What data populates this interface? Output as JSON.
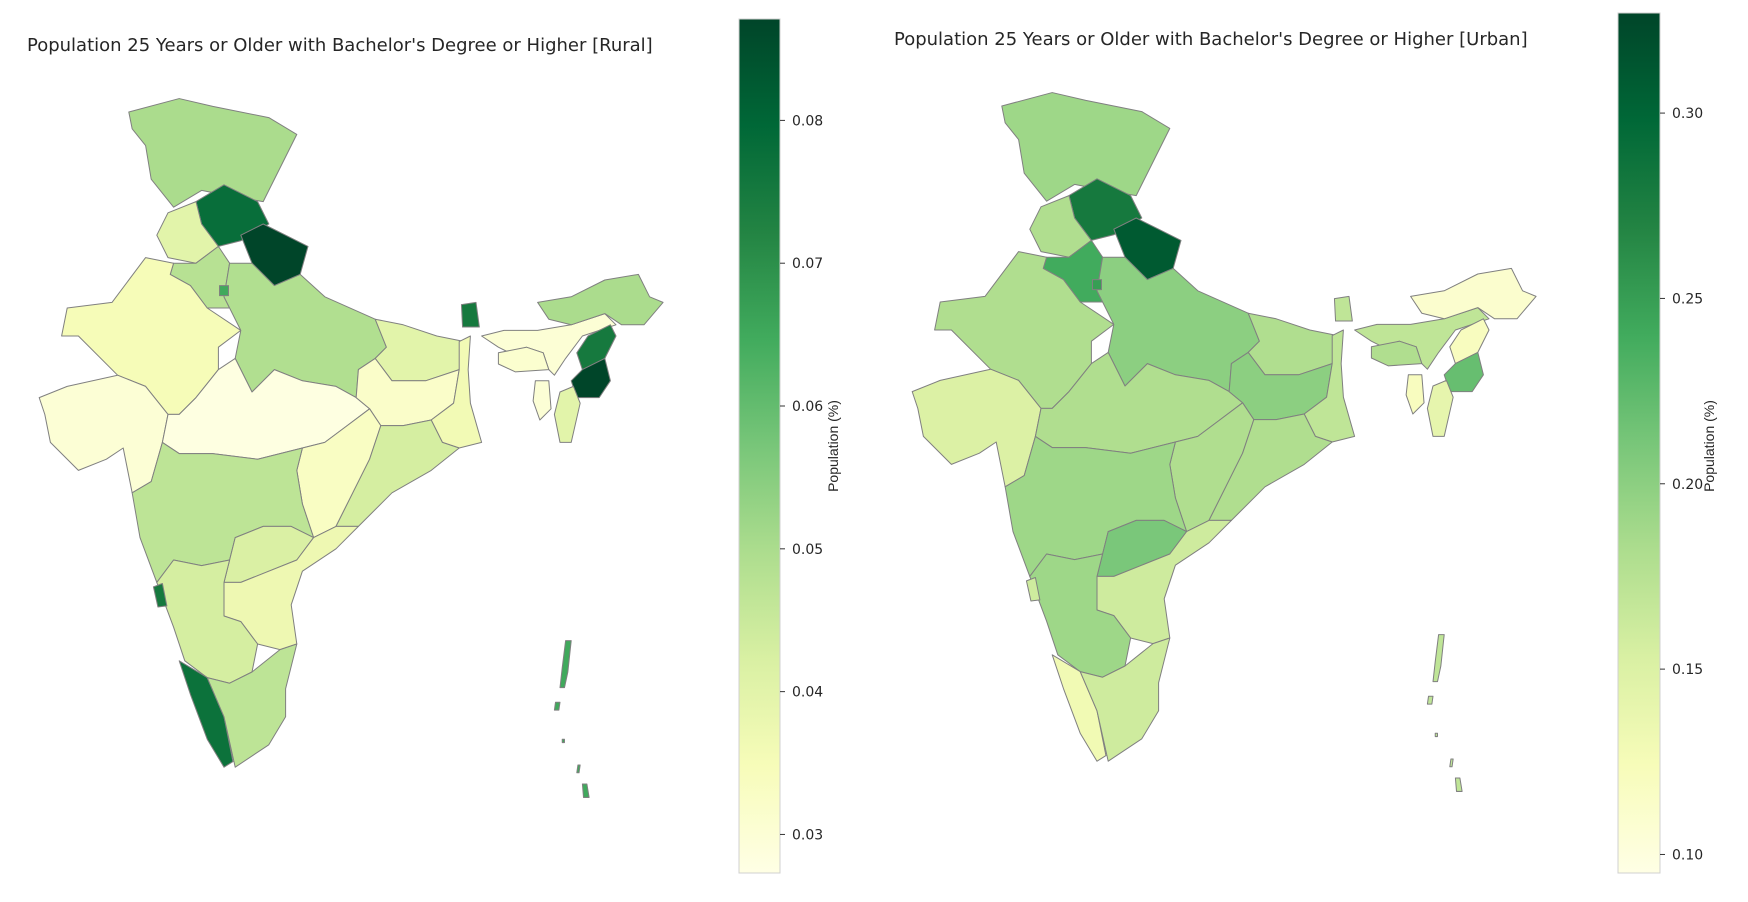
{
  "chart_data": [
    {
      "type": "choropleth",
      "title": "Population 25 Years or Older with Bachelor's Degree or Higher [Rural]",
      "colorbar_label": "Population (%)",
      "colormap": "YlGn",
      "vlim": [
        0.0273,
        0.0871
      ],
      "ticks": [
        0.03,
        0.04,
        0.05,
        0.06,
        0.07,
        0.08
      ],
      "tick_labels": [
        "0.03",
        "0.04",
        "0.05",
        "0.06",
        "0.07",
        "0.08"
      ],
      "values": {
        "Jammu & Kashmir": 0.05,
        "Himachal Pradesh": 0.078,
        "Uttarakhand": 0.087,
        "Punjab": 0.04,
        "Haryana": 0.048,
        "Delhi": 0.065,
        "Rajasthan": 0.035,
        "Uttar Pradesh": 0.049,
        "Bihar": 0.04,
        "Gujarat": 0.03,
        "Madhya Pradesh": 0.028,
        "Jharkhand": 0.032,
        "West Bengal": 0.036,
        "Chhattisgarh": 0.033,
        "Odisha": 0.043,
        "Maharashtra": 0.047,
        "Telangana": 0.042,
        "Andhra Pradesh": 0.037,
        "Karnataka": 0.043,
        "Goa": 0.075,
        "Kerala": 0.077,
        "Tamil Nadu": 0.047,
        "Sikkim": 0.075,
        "Assam": 0.03,
        "Meghalaya": 0.031,
        "Arunachal Pradesh": 0.05,
        "Nagaland": 0.075,
        "Manipur": 0.087,
        "Mizoram": 0.04,
        "Tripura": 0.03,
        "Andaman & Nicobar": 0.065
      }
    },
    {
      "type": "choropleth",
      "title": "Population 25 Years or Older with Bachelor's Degree or Higher [Urban]",
      "colorbar_label": "Population (%)",
      "colormap": "YlGn",
      "vlim": [
        0.095,
        0.327
      ],
      "ticks": [
        0.1,
        0.15,
        0.2,
        0.25,
        0.3
      ],
      "tick_labels": [
        "0.10",
        "0.15",
        "0.20",
        "0.25",
        "0.30"
      ],
      "values": {
        "Jammu & Kashmir": 0.19,
        "Himachal Pradesh": 0.28,
        "Uttarakhand": 0.31,
        "Punjab": 0.18,
        "Haryana": 0.24,
        "Delhi": 0.25,
        "Rajasthan": 0.18,
        "Uttar Pradesh": 0.2,
        "Bihar": 0.18,
        "Gujarat": 0.15,
        "Madhya Pradesh": 0.18,
        "Jharkhand": 0.2,
        "West Bengal": 0.17,
        "Chhattisgarh": 0.18,
        "Odisha": 0.18,
        "Maharashtra": 0.19,
        "Telangana": 0.21,
        "Andhra Pradesh": 0.16,
        "Karnataka": 0.19,
        "Goa": 0.16,
        "Kerala": 0.13,
        "Tamil Nadu": 0.16,
        "Sikkim": 0.17,
        "Assam": 0.17,
        "Meghalaya": 0.18,
        "Arunachal Pradesh": 0.11,
        "Nagaland": 0.12,
        "Manipur": 0.22,
        "Mizoram": 0.14,
        "Tripura": 0.12,
        "Andaman & Nicobar": 0.17
      }
    }
  ]
}
